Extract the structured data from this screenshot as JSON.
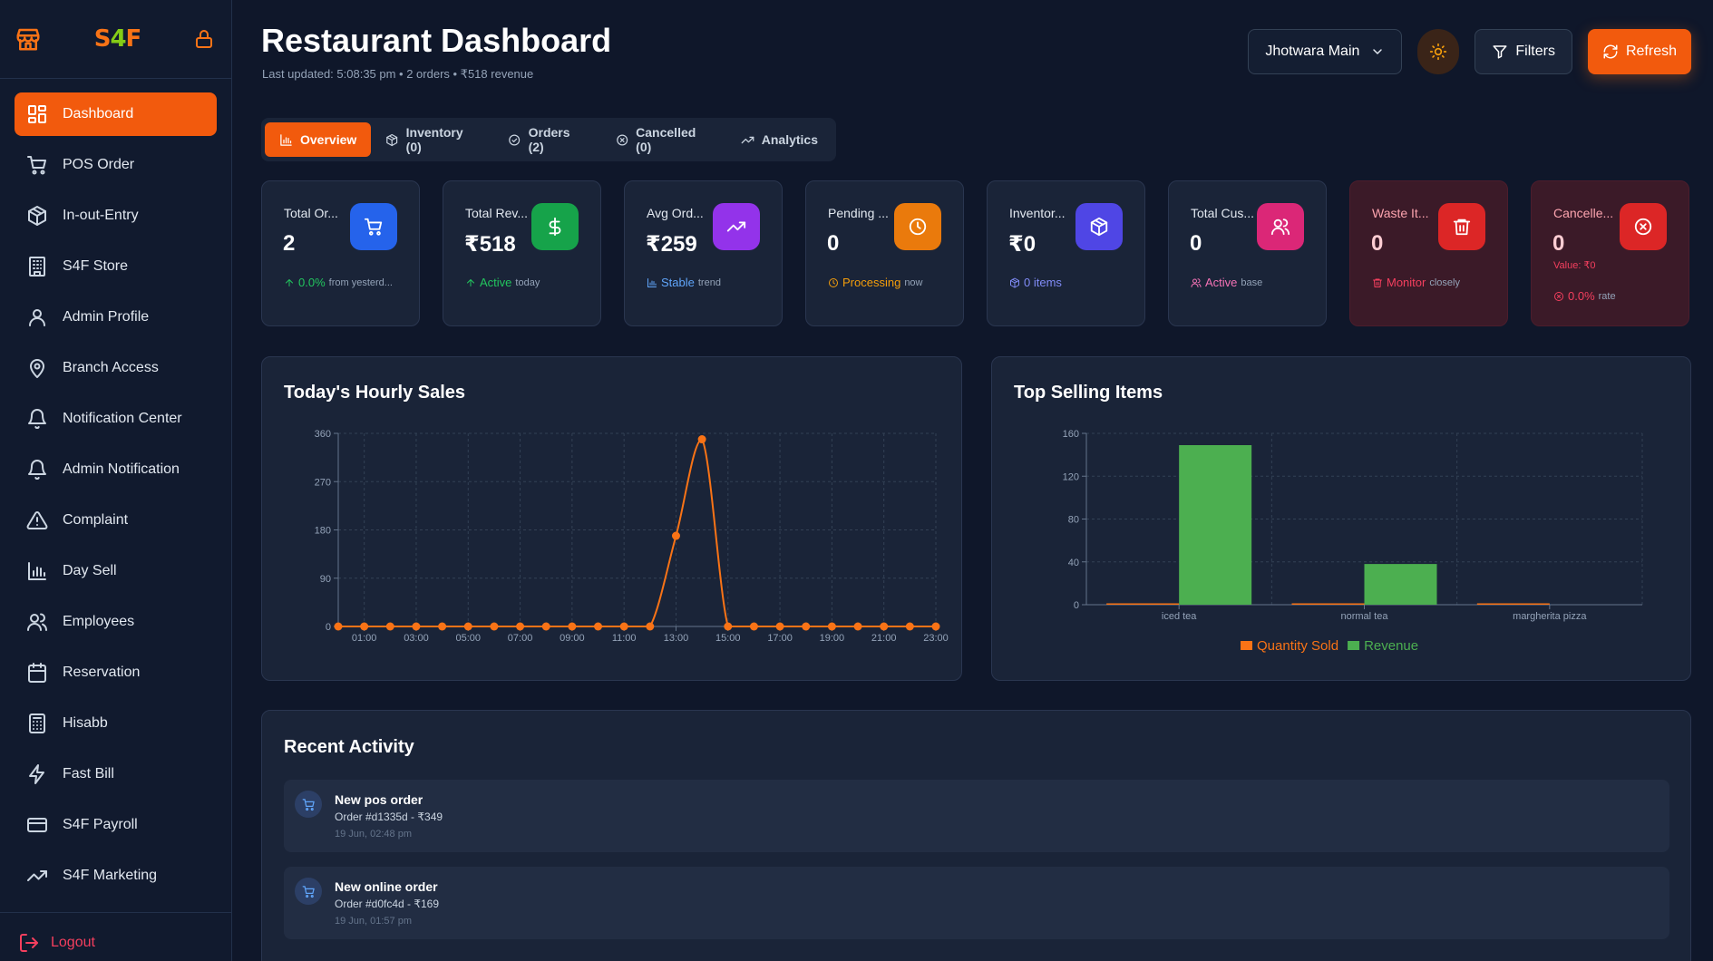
{
  "sidebar": {
    "logo": {
      "s": "S",
      "four": "4",
      "f": "F"
    },
    "items": [
      {
        "label": "Dashboard",
        "icon": "dashboard-icon",
        "active": true
      },
      {
        "label": "POS Order",
        "icon": "cart-icon"
      },
      {
        "label": "In-out-Entry",
        "icon": "package-icon"
      },
      {
        "label": "S4F Store",
        "icon": "store-building-icon"
      },
      {
        "label": "Admin Profile",
        "icon": "user-icon"
      },
      {
        "label": "Branch Access",
        "icon": "map-pin-icon"
      },
      {
        "label": "Notification Center",
        "icon": "bell-icon"
      },
      {
        "label": "Admin Notification",
        "icon": "bell-icon"
      },
      {
        "label": "Complaint",
        "icon": "alert-triangle-icon"
      },
      {
        "label": "Day Sell",
        "icon": "bar-chart-icon"
      },
      {
        "label": "Employees",
        "icon": "users-icon"
      },
      {
        "label": "Reservation",
        "icon": "calendar-icon"
      },
      {
        "label": "Hisabb",
        "icon": "calculator-icon"
      },
      {
        "label": "Fast Bill",
        "icon": "zap-icon"
      },
      {
        "label": "S4F Payroll",
        "icon": "credit-card-icon"
      },
      {
        "label": "S4F Marketing",
        "icon": "trending-up-icon"
      }
    ],
    "logout": "Logout"
  },
  "header": {
    "title": "Restaurant Dashboard",
    "subtitle": "Last updated: 5:08:35 pm • 2 orders • ₹518 revenue",
    "branch": "Jhotwara Main",
    "filters": "Filters",
    "refresh": "Refresh"
  },
  "tabs": [
    {
      "label": "Overview",
      "active": true
    },
    {
      "label": "Inventory (0)"
    },
    {
      "label": "Orders (2)"
    },
    {
      "label": "Cancelled (0)"
    },
    {
      "label": "Analytics"
    }
  ],
  "stats": [
    {
      "label": "Total Or...",
      "value": "2",
      "accent": "#22c55e",
      "foot_hl": "0.0%",
      "foot_muted": "from yesterd...",
      "icon_bg": "#2563eb"
    },
    {
      "label": "Total Rev...",
      "value": "₹518",
      "accent": "#22c55e",
      "foot_hl": "Active",
      "foot_muted": "today",
      "icon_bg": "#16a34a"
    },
    {
      "label": "Avg Ord...",
      "value": "₹259",
      "accent": "#60a5fa",
      "foot_hl": "Stable",
      "foot_muted": "trend",
      "icon_bg": "#9333ea"
    },
    {
      "label": "Pending ...",
      "value": "0",
      "accent": "#f59e0b",
      "foot_hl": "Processing",
      "foot_muted": "now",
      "icon_bg": "#ea7a0c"
    },
    {
      "label": "Inventor...",
      "value": "₹0",
      "accent": "#818cf8",
      "foot_hl": "0 items",
      "foot_muted": "",
      "icon_bg": "#4f46e5"
    },
    {
      "label": "Total Cus...",
      "value": "0",
      "accent": "#f472b6",
      "foot_hl": "Active",
      "foot_muted": "base",
      "icon_bg": "#db2777"
    },
    {
      "label": "Waste It...",
      "value": "0",
      "accent": "#f43f5e",
      "foot_hl": "Monitor",
      "foot_muted": "closely",
      "icon_bg": "#dc2626"
    },
    {
      "label": "Cancelle...",
      "value": "0",
      "accent": "#f43f5e",
      "extra": "Value: ₹0",
      "foot_hl": "0.0%",
      "foot_muted": "rate",
      "icon_bg": "#dc2626"
    }
  ],
  "hourly": {
    "title": "Today's Hourly Sales"
  },
  "top_selling": {
    "title": "Top Selling Items",
    "legend": [
      "Quantity Sold",
      "Revenue"
    ]
  },
  "activity": {
    "title": "Recent Activity",
    "items": [
      {
        "title": "New pos order",
        "sub": "Order #d1335d - ₹349",
        "time": "19 Jun, 02:48 pm"
      },
      {
        "title": "New online order",
        "sub": "Order #d0fc4d - ₹169",
        "time": "19 Jun, 01:57 pm"
      }
    ]
  },
  "chart_data": [
    {
      "type": "line",
      "title": "Today's Hourly Sales",
      "x": [
        "00:00",
        "01:00",
        "02:00",
        "03:00",
        "04:00",
        "05:00",
        "06:00",
        "07:00",
        "08:00",
        "09:00",
        "10:00",
        "11:00",
        "12:00",
        "13:00",
        "14:00",
        "15:00",
        "16:00",
        "17:00",
        "18:00",
        "19:00",
        "20:00",
        "21:00",
        "22:00",
        "23:00"
      ],
      "x_tick_labels": [
        "01:00",
        "03:00",
        "05:00",
        "07:00",
        "09:00",
        "11:00",
        "13:00",
        "15:00",
        "17:00",
        "19:00",
        "21:00",
        "23:00"
      ],
      "values": [
        0,
        0,
        0,
        0,
        0,
        0,
        0,
        0,
        0,
        0,
        0,
        0,
        0,
        169,
        349,
        0,
        0,
        0,
        0,
        0,
        0,
        0,
        0,
        0
      ],
      "ylim": [
        0,
        360
      ],
      "y_ticks": [
        0,
        90,
        180,
        270,
        360
      ],
      "color": "#f97316",
      "grid": true
    },
    {
      "type": "bar",
      "title": "Top Selling Items",
      "categories": [
        "iced tea",
        "normal tea",
        "margherita pizza"
      ],
      "series": [
        {
          "name": "Quantity Sold",
          "values": [
            1,
            1,
            1
          ],
          "color": "#f97316"
        },
        {
          "name": "Revenue",
          "values": [
            149,
            38,
            0
          ],
          "color": "#4caf50"
        }
      ],
      "ylim": [
        0,
        160
      ],
      "y_ticks": [
        0,
        40,
        80,
        120,
        160
      ],
      "grid": true,
      "legend": "bottom"
    }
  ]
}
